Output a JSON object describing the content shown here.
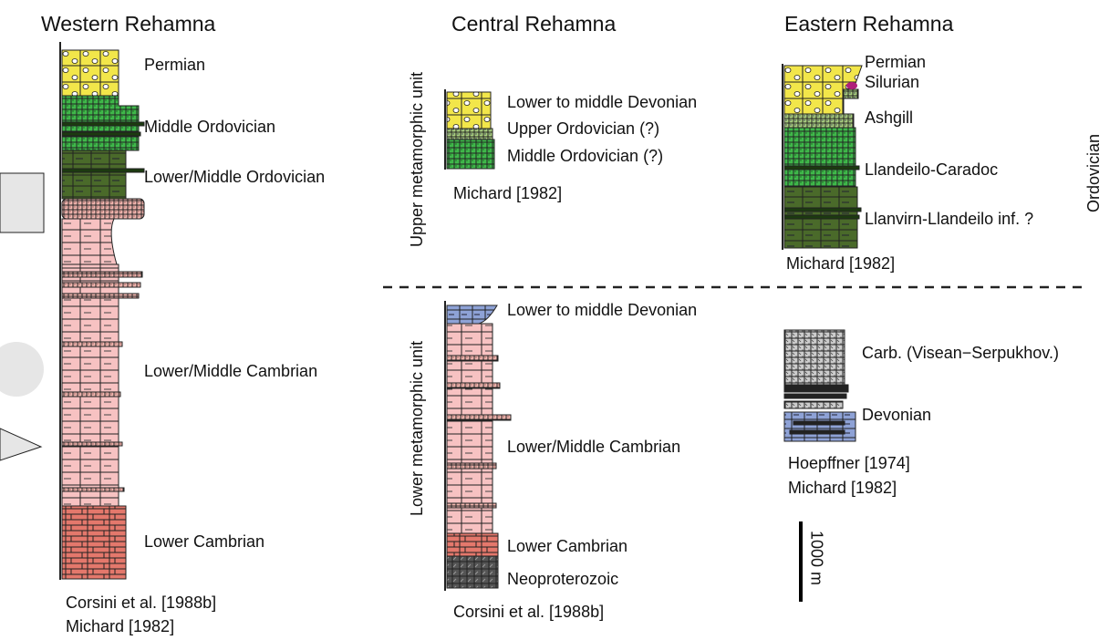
{
  "western": {
    "title": "Western Rehamna",
    "units": [
      "Permian",
      "Middle Ordovician",
      "Lower/Middle Ordovician",
      "Lower/Middle Cambrian",
      "Lower Cambrian"
    ],
    "references": [
      "Corsini et al. [1988b]",
      "Michard [1982]"
    ]
  },
  "central": {
    "title": "Central Rehamna",
    "upper": {
      "units": [
        "Lower to middle Devonian",
        "Upper Ordovician (?)",
        "Middle Ordovician (?)"
      ],
      "references": [
        "Michard [1982]"
      ]
    },
    "lower": {
      "units": [
        "Lower to middle Devonian",
        "Lower/Middle Cambrian",
        "Lower Cambrian",
        "Neoproterozoic"
      ],
      "references": [
        "Corsini et al. [1988b]"
      ]
    }
  },
  "eastern": {
    "title": "Eastern Rehamna",
    "upper": {
      "units": [
        "Permian",
        "Silurian",
        "Ashgill",
        "Llandeilo-Caradoc",
        "Llanvirn-Llandeilo inf. ?"
      ],
      "group_label": "Ordovician",
      "references": [
        "Michard [1982]"
      ]
    },
    "lower": {
      "units": [
        "Carb. (Visean−Serpukhov.)",
        "Devonian"
      ],
      "references": [
        "Hoepffner [1974]",
        "Michard [1982]"
      ]
    }
  },
  "unit_labels": {
    "upper": "Upper metamorphic unit",
    "lower": "Lower metamorphic unit"
  },
  "scale_bar": {
    "label": "1000 m"
  }
}
